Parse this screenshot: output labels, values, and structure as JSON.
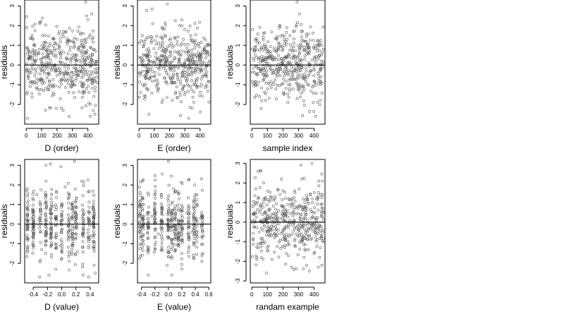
{
  "figure": {
    "colors": {
      "points": "#555555",
      "axes": "#000000",
      "background": "#ffffff"
    },
    "point_style": "open-circle",
    "layout": "2 rows x 3 columns"
  },
  "chart_data": [
    {
      "type": "scatter",
      "title": "",
      "xlabel": "D (order)",
      "ylabel": "residuals",
      "xlim": [
        -10,
        470
      ],
      "ylim": [
        -3.0,
        3.3
      ],
      "xticks": [
        0,
        100,
        200,
        300,
        400
      ],
      "xtick_labels": [
        "0",
        "100",
        "200",
        "300",
        "400"
      ],
      "yticks": [
        -2,
        -1,
        0,
        1,
        2,
        3
      ],
      "ytick_labels": [
        "-2",
        "-1",
        "0",
        "1",
        "2",
        "3"
      ],
      "reference_line_y": 0,
      "n_points": 460,
      "points": [
        [
          12,
          -0.6
        ],
        [
          25,
          0.4
        ],
        [
          38,
          1.5
        ],
        [
          55,
          0.2
        ],
        [
          70,
          -1.2
        ],
        [
          85,
          0.8
        ],
        [
          95,
          2.2
        ],
        [
          110,
          -0.3
        ],
        [
          125,
          -2.3
        ],
        [
          140,
          0.9
        ],
        [
          155,
          1.1
        ],
        [
          165,
          0.6
        ],
        [
          180,
          -1.5
        ],
        [
          195,
          -2.2
        ],
        [
          215,
          1.7
        ],
        [
          235,
          0.1
        ],
        [
          255,
          -0.8
        ],
        [
          270,
          1.2
        ],
        [
          290,
          0.3
        ],
        [
          310,
          -0.5
        ],
        [
          330,
          1.3
        ],
        [
          350,
          -0.1
        ],
        [
          370,
          1.6
        ],
        [
          385,
          3.2
        ],
        [
          400,
          2.3
        ],
        [
          415,
          -2.6
        ],
        [
          430,
          0.5
        ],
        [
          445,
          -2.5
        ],
        [
          455,
          0.2
        ],
        [
          460,
          -0.9
        ]
      ]
    },
    {
      "type": "scatter",
      "title": "",
      "xlabel": "E (order)",
      "ylabel": "residuals",
      "xlim": [
        -10,
        470
      ],
      "ylim": [
        -3.0,
        3.3
      ],
      "xticks": [
        0,
        100,
        200,
        300,
        400
      ],
      "xtick_labels": [
        "0",
        "100",
        "200",
        "300",
        "400"
      ],
      "yticks": [
        -2,
        -1,
        0,
        1,
        2,
        3
      ],
      "ytick_labels": [
        "-2",
        "-1",
        "0",
        "1",
        "2",
        "3"
      ],
      "reference_line_y": 0,
      "n_points": 460,
      "points": [
        [
          10,
          -0.4
        ],
        [
          30,
          1.2
        ],
        [
          50,
          0.5
        ],
        [
          65,
          -2.5
        ],
        [
          90,
          2.1
        ],
        [
          105,
          -0.8
        ],
        [
          130,
          0.3
        ],
        [
          150,
          -1.9
        ],
        [
          170,
          1.5
        ],
        [
          185,
          3.1
        ],
        [
          200,
          -0.2
        ],
        [
          220,
          0.9
        ],
        [
          240,
          -1.4
        ],
        [
          265,
          2.0
        ],
        [
          280,
          -0.6
        ],
        [
          300,
          1.8
        ],
        [
          325,
          -2.7
        ],
        [
          345,
          0.4
        ],
        [
          365,
          -0.9
        ],
        [
          390,
          1.1
        ],
        [
          410,
          -0.3
        ],
        [
          430,
          0.7
        ],
        [
          445,
          -1.1
        ],
        [
          460,
          0.2
        ]
      ]
    },
    {
      "type": "scatter",
      "title": "",
      "xlabel": "sample index",
      "ylabel": "residuals",
      "xlim": [
        -10,
        470
      ],
      "ylim": [
        -3.0,
        3.3
      ],
      "xticks": [
        0,
        100,
        200,
        300,
        400
      ],
      "xtick_labels": [
        "0",
        "100",
        "200",
        "300",
        "400"
      ],
      "yticks": [
        -2,
        -1,
        0,
        1,
        2,
        3
      ],
      "ytick_labels": [
        "-2",
        "-1",
        "0",
        "1",
        "2",
        "3"
      ],
      "reference_line_y": 0,
      "n_points": 460,
      "points": [
        [
          5,
          1.8
        ],
        [
          20,
          0.9
        ],
        [
          35,
          -0.5
        ],
        [
          50,
          -1.6
        ],
        [
          60,
          -2.2
        ],
        [
          75,
          1.6
        ],
        [
          95,
          -0.3
        ],
        [
          115,
          0.6
        ],
        [
          135,
          -1.0
        ],
        [
          160,
          1.3
        ],
        [
          175,
          -0.2
        ],
        [
          200,
          0.8
        ],
        [
          225,
          1.9
        ],
        [
          245,
          -1.2
        ],
        [
          270,
          0.4
        ],
        [
          290,
          3.2
        ],
        [
          305,
          2.6
        ],
        [
          320,
          1.7
        ],
        [
          345,
          -0.7
        ],
        [
          370,
          0.9
        ],
        [
          395,
          -1.9
        ],
        [
          410,
          -2.6
        ],
        [
          425,
          0.3
        ],
        [
          445,
          -0.6
        ],
        [
          460,
          0.8
        ]
      ]
    },
    {
      "type": "scatter",
      "title": "",
      "xlabel": "D (value)",
      "ylabel": "residuals",
      "xlim": [
        -0.52,
        0.52
      ],
      "ylim": [
        -3.0,
        3.3
      ],
      "xticks": [
        -0.4,
        -0.2,
        0.0,
        0.2,
        0.4
      ],
      "xtick_labels": [
        "-0.4",
        "-0.2",
        "0.0",
        "0.2",
        "0.4"
      ],
      "yticks": [
        -2,
        -1,
        0,
        1,
        2,
        3
      ],
      "ytick_labels": [
        "-2",
        "-1",
        "0",
        "1",
        "2",
        "3"
      ],
      "reference_line_y": 0,
      "n_points": 460,
      "points": [
        [
          -0.48,
          -0.7
        ],
        [
          -0.42,
          0.3
        ],
        [
          -0.35,
          1.5
        ],
        [
          -0.28,
          -1.3
        ],
        [
          -0.22,
          2.2
        ],
        [
          -0.18,
          -2.6
        ],
        [
          -0.12,
          0.9
        ],
        [
          -0.07,
          1.6
        ],
        [
          -0.02,
          -1.1
        ],
        [
          0.0,
          0.5
        ],
        [
          0.05,
          1.9
        ],
        [
          0.1,
          0.8
        ],
        [
          0.12,
          -0.3
        ],
        [
          0.18,
          3.2
        ],
        [
          0.22,
          -1.4
        ],
        [
          0.28,
          2.2
        ],
        [
          0.3,
          -2.6
        ],
        [
          0.38,
          0.2
        ],
        [
          0.42,
          -0.6
        ],
        [
          0.47,
          -2.5
        ]
      ]
    },
    {
      "type": "scatter",
      "title": "",
      "xlabel": "E (value)",
      "ylabel": "residuals",
      "xlim": [
        -0.46,
        0.63
      ],
      "ylim": [
        -3.0,
        3.3
      ],
      "xticks": [
        -0.4,
        -0.2,
        0.0,
        0.2,
        0.4,
        0.6
      ],
      "xtick_labels": [
        "-0.4",
        "-0.2",
        "0.0",
        "0.2",
        "0.4",
        "0.6"
      ],
      "yticks": [
        -2,
        -1,
        0,
        1,
        2,
        3
      ],
      "ytick_labels": [
        "-2",
        "-1",
        "0",
        "1",
        "2",
        "3"
      ],
      "reference_line_y": 0,
      "n_points": 460,
      "points": [
        [
          -0.42,
          1.6
        ],
        [
          -0.4,
          -1.0
        ],
        [
          -0.38,
          2.2
        ],
        [
          -0.3,
          -2.6
        ],
        [
          -0.25,
          0.4
        ],
        [
          -0.15,
          -0.5
        ],
        [
          -0.02,
          -2.1
        ],
        [
          0.0,
          3.2
        ],
        [
          0.05,
          -2.6
        ],
        [
          0.08,
          1.8
        ],
        [
          0.12,
          -0.7
        ],
        [
          0.16,
          1.3
        ],
        [
          0.2,
          -1.5
        ],
        [
          0.28,
          0.6
        ],
        [
          0.35,
          -0.4
        ],
        [
          0.4,
          1.5
        ],
        [
          0.42,
          -0.9
        ],
        [
          0.48,
          0.3
        ],
        [
          0.52,
          -0.6
        ]
      ]
    },
    {
      "type": "scatter",
      "title": "",
      "xlabel": "randam example",
      "ylabel": "residuals",
      "xlim": [
        -10,
        470
      ],
      "ylim": [
        -3.1,
        3.2
      ],
      "xticks": [
        0,
        100,
        200,
        300,
        400
      ],
      "xtick_labels": [
        "0",
        "100",
        "200",
        "300",
        "400"
      ],
      "yticks": [
        -3,
        -2,
        -1,
        0,
        1,
        2,
        3
      ],
      "ytick_labels": [
        "-3",
        "-2",
        "-1",
        "0",
        "1",
        "2",
        "3"
      ],
      "reference_line_y": 0,
      "n_points": 460,
      "points": [
        [
          8,
          -0.9
        ],
        [
          25,
          1.7
        ],
        [
          40,
          2.6
        ],
        [
          55,
          -1.1
        ],
        [
          75,
          2.0
        ],
        [
          95,
          -2.6
        ],
        [
          110,
          0.6
        ],
        [
          130,
          -1.9
        ],
        [
          150,
          1.3
        ],
        [
          170,
          -0.4
        ],
        [
          190,
          2.2
        ],
        [
          210,
          -1.3
        ],
        [
          230,
          0.9
        ],
        [
          255,
          -2.3
        ],
        [
          275,
          1.6
        ],
        [
          295,
          -0.7
        ],
        [
          315,
          2.9
        ],
        [
          335,
          -1.8
        ],
        [
          350,
          0.4
        ],
        [
          370,
          -2.5
        ],
        [
          390,
          1.2
        ],
        [
          410,
          -0.8
        ],
        [
          430,
          2.1
        ],
        [
          450,
          -2.2
        ],
        [
          460,
          0.5
        ]
      ]
    }
  ]
}
